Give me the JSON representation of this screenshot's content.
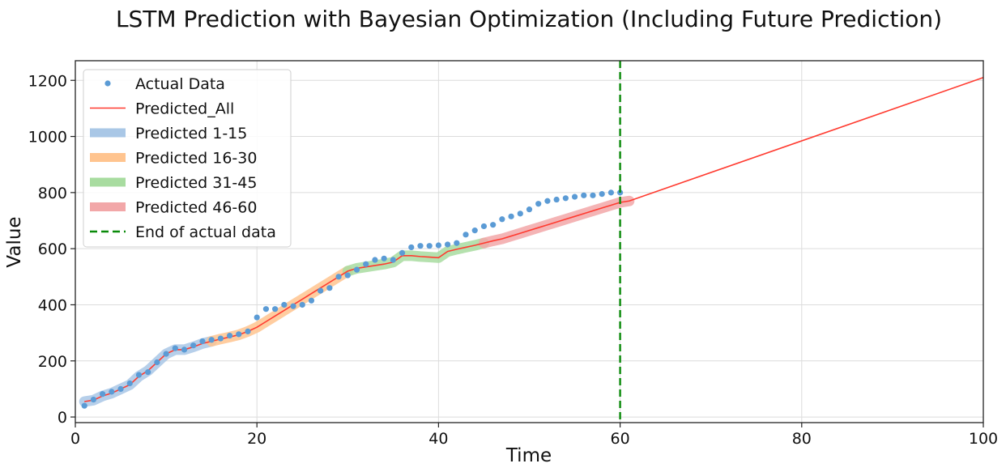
{
  "chart_data": {
    "type": "line",
    "title": "LSTM Prediction with Bayesian Optimization (Including Future Prediction)",
    "xlabel": "Time",
    "ylabel": "Value",
    "xlim": [
      0,
      100
    ],
    "ylim": [
      -20,
      1270
    ],
    "xticks": [
      0,
      20,
      40,
      60,
      80,
      100
    ],
    "yticks": [
      0,
      200,
      400,
      600,
      800,
      1000,
      1200
    ],
    "grid": true,
    "legend_position": "upper-left",
    "colors": {
      "actual": "#5b9bd5",
      "predicted_all": "#ff3b30",
      "band_1_15": "#a9c7e6",
      "band_16_30": "#ffc48f",
      "band_31_45": "#a8dca0",
      "band_46_60": "#f2a7a8",
      "end_line": "#0a8a0a"
    },
    "legend": [
      {
        "label": "Actual Data",
        "kind": "marker",
        "color_key": "actual"
      },
      {
        "label": "Predicted_All",
        "kind": "line",
        "color_key": "predicted_all"
      },
      {
        "label": "Predicted 1-15",
        "kind": "band",
        "color_key": "band_1_15"
      },
      {
        "label": "Predicted 16-30",
        "kind": "band",
        "color_key": "band_16_30"
      },
      {
        "label": "Predicted 31-45",
        "kind": "band",
        "color_key": "band_31_45"
      },
      {
        "label": "Predicted 46-60",
        "kind": "band",
        "color_key": "band_46_60"
      },
      {
        "label": "End of actual data",
        "kind": "dashed",
        "color_key": "end_line"
      }
    ],
    "series": [
      {
        "name": "Actual Data",
        "kind": "scatter",
        "x": [
          1,
          2,
          3,
          4,
          5,
          6,
          7,
          8,
          9,
          10,
          11,
          12,
          13,
          14,
          15,
          16,
          17,
          18,
          19,
          20,
          21,
          22,
          23,
          24,
          25,
          26,
          27,
          28,
          29,
          30,
          31,
          32,
          33,
          34,
          35,
          36,
          37,
          38,
          39,
          40,
          41,
          42,
          43,
          44,
          45,
          46,
          47,
          48,
          49,
          50,
          51,
          52,
          53,
          54,
          55,
          56,
          57,
          58,
          59,
          60
        ],
        "y": [
          40,
          62,
          82,
          90,
          100,
          120,
          150,
          160,
          195,
          225,
          245,
          240,
          255,
          270,
          275,
          280,
          290,
          295,
          305,
          355,
          385,
          385,
          400,
          395,
          400,
          415,
          450,
          460,
          500,
          505,
          525,
          545,
          560,
          565,
          560,
          585,
          605,
          610,
          610,
          612,
          615,
          620,
          650,
          665,
          680,
          685,
          705,
          715,
          725,
          740,
          760,
          770,
          775,
          780,
          785,
          790,
          790,
          795,
          800,
          800
        ]
      },
      {
        "name": "Predicted_All",
        "kind": "line",
        "x": [
          1,
          2,
          3,
          4,
          5,
          6,
          7,
          8,
          9,
          10,
          11,
          12,
          13,
          14,
          15,
          16,
          17,
          18,
          19,
          20,
          21,
          22,
          23,
          24,
          25,
          26,
          27,
          28,
          29,
          30,
          31,
          32,
          33,
          34,
          35,
          36,
          37,
          38,
          39,
          40,
          41,
          42,
          43,
          44,
          45,
          46,
          47,
          48,
          49,
          50,
          51,
          52,
          53,
          54,
          55,
          56,
          57,
          58,
          59,
          60,
          61,
          100
        ],
        "y": [
          55,
          60,
          75,
          85,
          100,
          115,
          145,
          165,
          195,
          225,
          240,
          240,
          250,
          262,
          270,
          278,
          285,
          293,
          305,
          320,
          340,
          360,
          380,
          400,
          420,
          440,
          460,
          480,
          500,
          520,
          530,
          535,
          540,
          545,
          552,
          575,
          575,
          572,
          570,
          568,
          590,
          598,
          605,
          612,
          620,
          628,
          635,
          645,
          655,
          665,
          675,
          685,
          695,
          705,
          715,
          725,
          735,
          745,
          755,
          765,
          770,
          1210
        ]
      }
    ],
    "bands": [
      {
        "name": "Predicted 1-15",
        "x_range": [
          1,
          15
        ]
      },
      {
        "name": "Predicted 16-30",
        "x_range": [
          15,
          30
        ]
      },
      {
        "name": "Predicted 31-45",
        "x_range": [
          30,
          45
        ]
      },
      {
        "name": "Predicted 46-60",
        "x_range": [
          45,
          61
        ]
      }
    ],
    "vlines": [
      {
        "name": "End of actual data",
        "x": 60,
        "style": "dashed"
      }
    ]
  }
}
